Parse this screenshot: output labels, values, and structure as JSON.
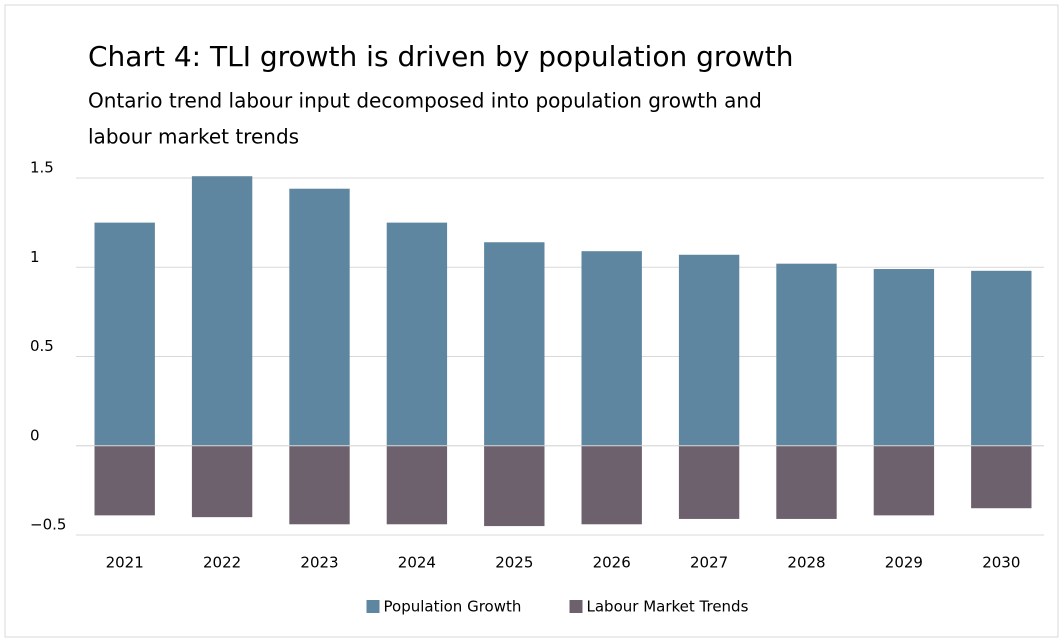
{
  "chart_data": {
    "type": "bar",
    "stacked": true,
    "title": "Chart 4: TLI growth is driven by population growth",
    "subtitle": [
      "Ontario trend labour input decomposed into population growth and",
      "labour market trends"
    ],
    "categories": [
      "2021",
      "2022",
      "2023",
      "2024",
      "2025",
      "2026",
      "2027",
      "2028",
      "2029",
      "2030"
    ],
    "series": [
      {
        "name": "Population Growth",
        "color": "#5f86a0",
        "values": [
          1.25,
          1.51,
          1.44,
          1.25,
          1.14,
          1.09,
          1.07,
          1.02,
          0.99,
          0.98
        ]
      },
      {
        "name": "Labour Market Trends",
        "color": "#6e616e",
        "values": [
          -0.39,
          -0.4,
          -0.44,
          -0.44,
          -0.45,
          -0.44,
          -0.41,
          -0.41,
          -0.39,
          -0.35
        ]
      }
    ],
    "ylim": [
      -0.5,
      1.5
    ],
    "yticks": [
      {
        "value": -0.5,
        "label": "−0.5"
      },
      0,
      0.5,
      1,
      1.5
    ],
    "grid": true,
    "legend": "bottom"
  }
}
